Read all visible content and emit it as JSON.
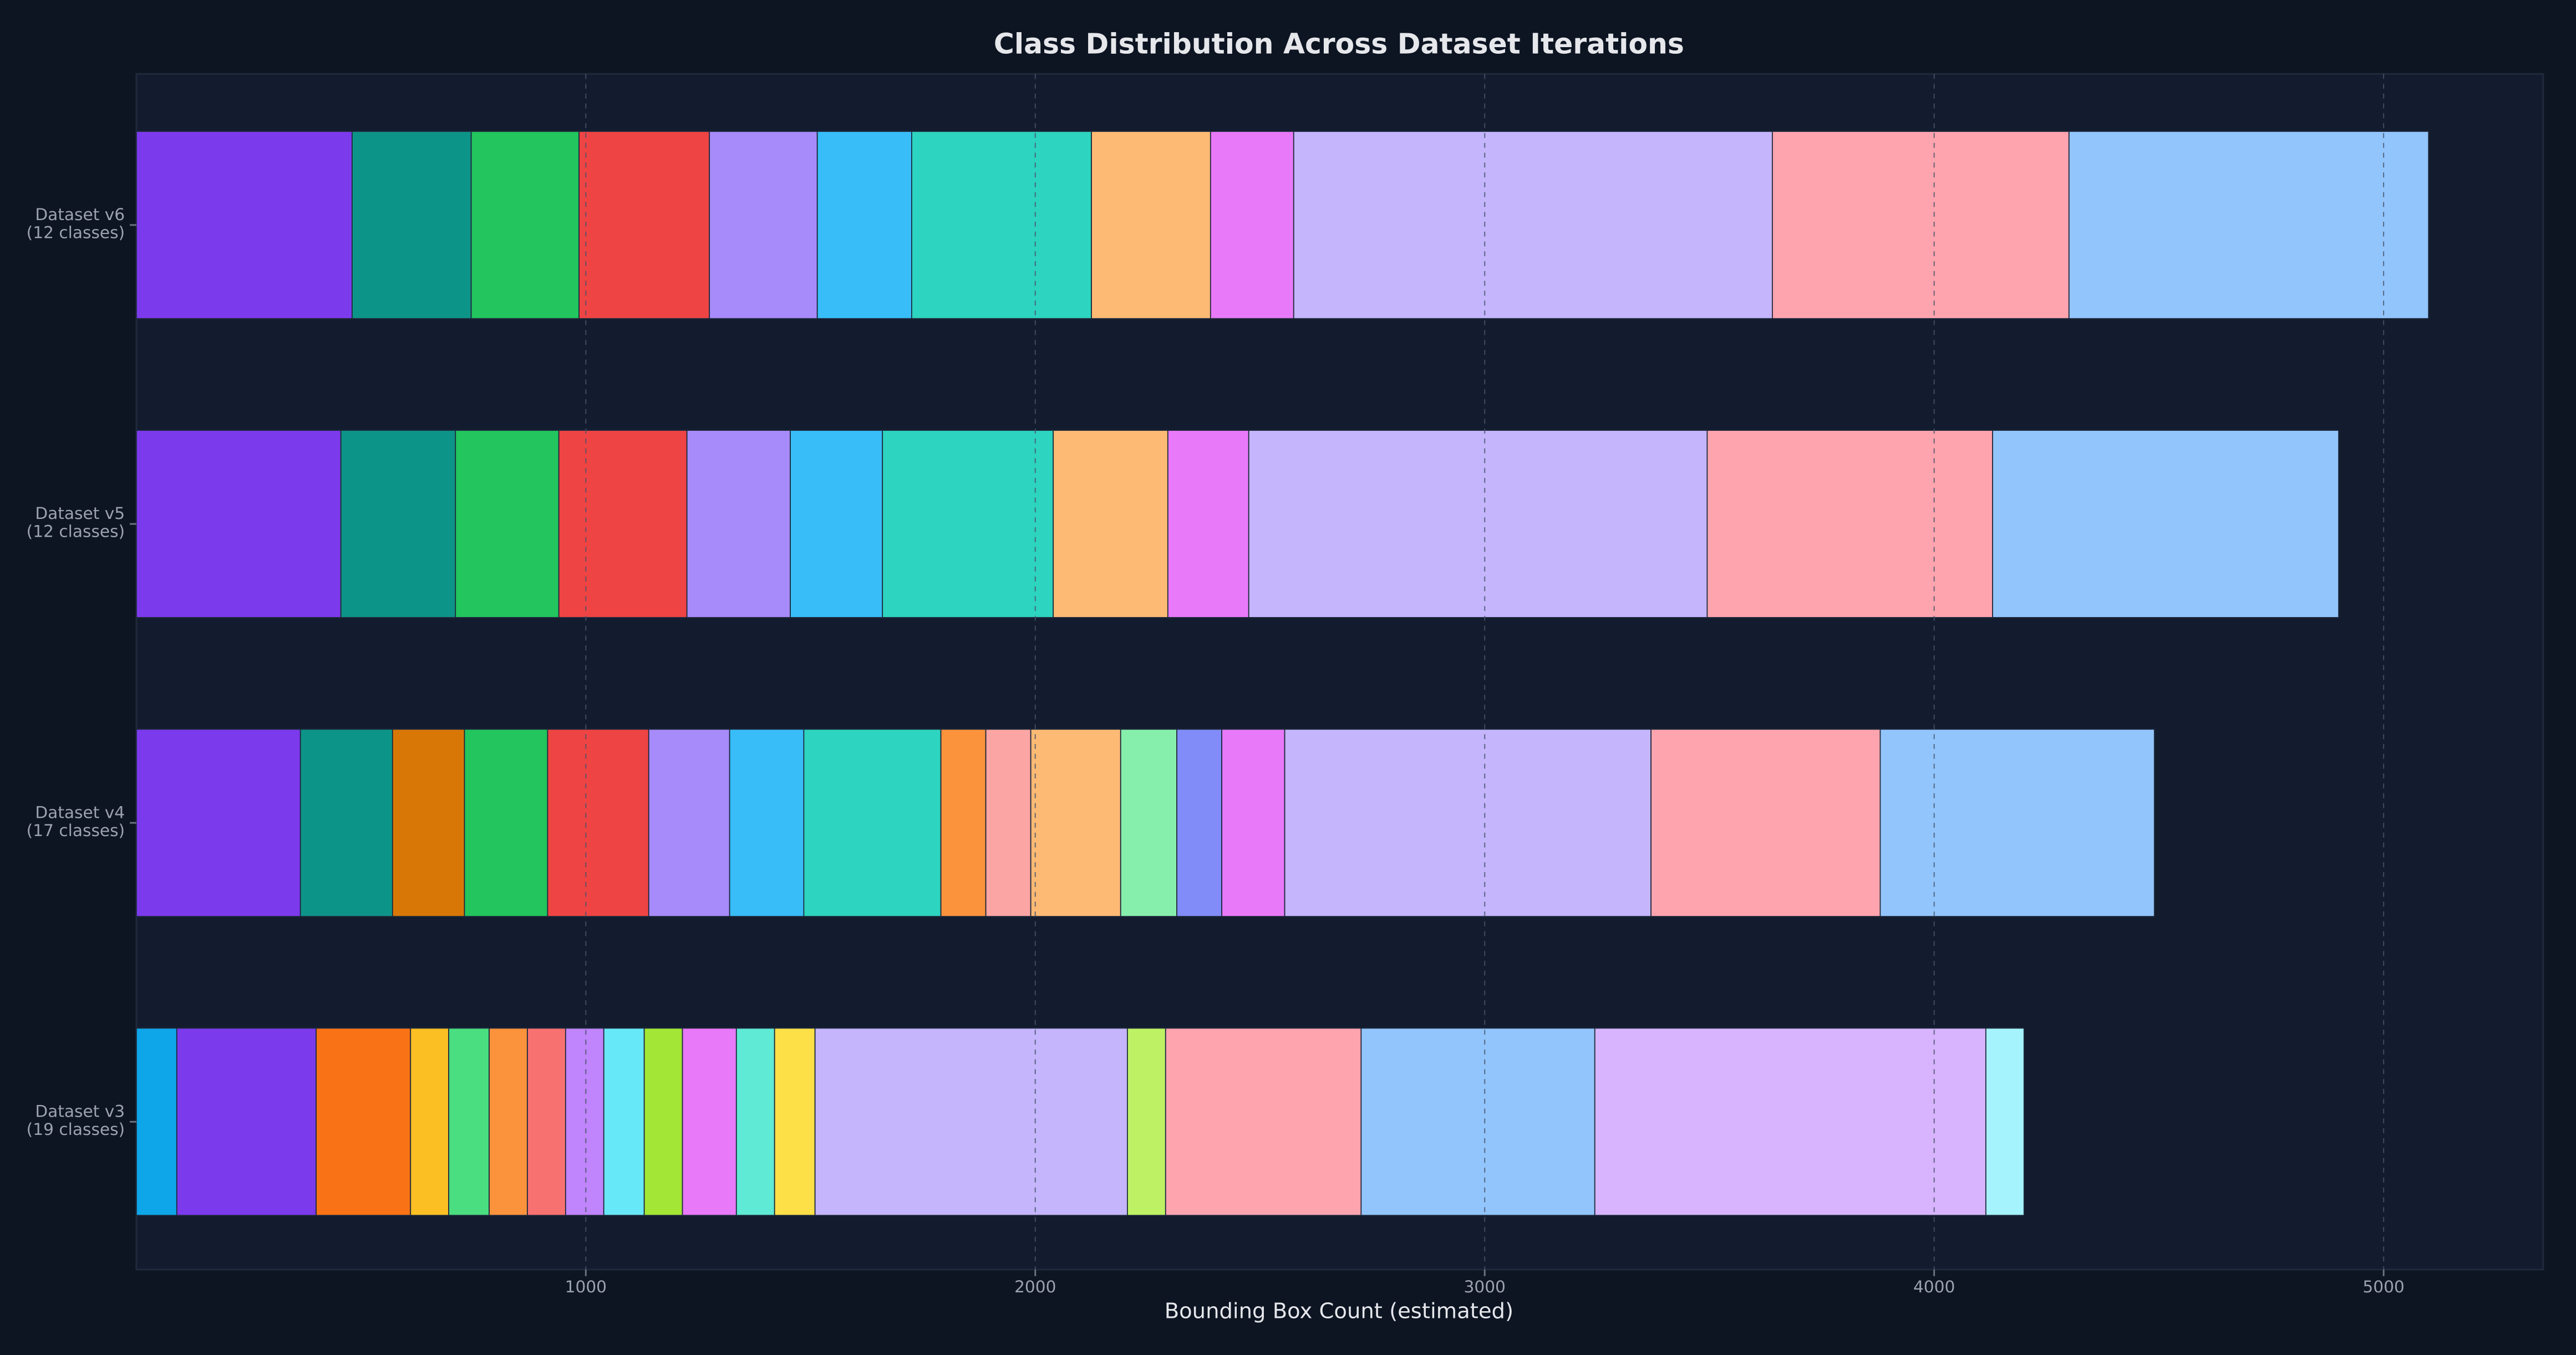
{
  "chart_data": {
    "type": "stacked-barh",
    "title": "Class Distribution Across Dataset Iterations",
    "x_label": "Bounding Box Count (estimated)",
    "categories": [
      "Dataset v6\n(12 classes)",
      "Dataset v5\n(12 classes)",
      "Dataset v4\n(17 classes)",
      "Dataset v3\n(19 classes)"
    ],
    "bars": [
      {
        "values": [
          480,
          265,
          240,
          290,
          240,
          210,
          400,
          265,
          185,
          1065,
          660,
          800
        ],
        "colors": [
          "#7c3aed",
          "#0d9488",
          "#22c55e",
          "#ef4444",
          "#a78bfa",
          "#38bdf8",
          "#2dd4bf",
          "#fdba74",
          "#e879f9",
          "#c4b5fd",
          "#fda4af",
          "#93c5fd"
        ]
      },
      {
        "values": [
          455,
          255,
          230,
          285,
          230,
          205,
          380,
          255,
          180,
          1020,
          635,
          770
        ],
        "colors": [
          "#7c3aed",
          "#0d9488",
          "#22c55e",
          "#ef4444",
          "#a78bfa",
          "#38bdf8",
          "#2dd4bf",
          "#fdba74",
          "#e879f9",
          "#c4b5fd",
          "#fda4af",
          "#93c5fd"
        ]
      },
      {
        "values": [
          365,
          205,
          160,
          185,
          225,
          180,
          165,
          305,
          100,
          100,
          200,
          125,
          100,
          140,
          815,
          510,
          610
        ],
        "colors": [
          "#7c3aed",
          "#0d9488",
          "#d97706",
          "#22c55e",
          "#ef4444",
          "#a78bfa",
          "#38bdf8",
          "#2dd4bf",
          "#fb923c",
          "#fca5a5",
          "#fdba74",
          "#86efac",
          "#818cf8",
          "#e879f9",
          "#c4b5fd",
          "#fda4af",
          "#93c5fd"
        ]
      },
      {
        "values": [
          90,
          310,
          210,
          85,
          90,
          85,
          85,
          85,
          90,
          85,
          120,
          85,
          90,
          695,
          85,
          435,
          520,
          870,
          85
        ],
        "colors": [
          "#0ea5e9",
          "#7c3aed",
          "#f97316",
          "#fbbf24",
          "#4ade80",
          "#fb923c",
          "#f87171",
          "#c084fc",
          "#67e8f9",
          "#a3e635",
          "#e879f9",
          "#5eead4",
          "#fde047",
          "#c4b5fd",
          "#bef264",
          "#fda4af",
          "#93c5fd",
          "#d8b4fe",
          "#a5f3fc"
        ]
      }
    ],
    "xlim": [
      0,
      5355
    ],
    "xticks": [
      1000,
      2000,
      3000,
      4000,
      5000
    ],
    "grid": true
  }
}
